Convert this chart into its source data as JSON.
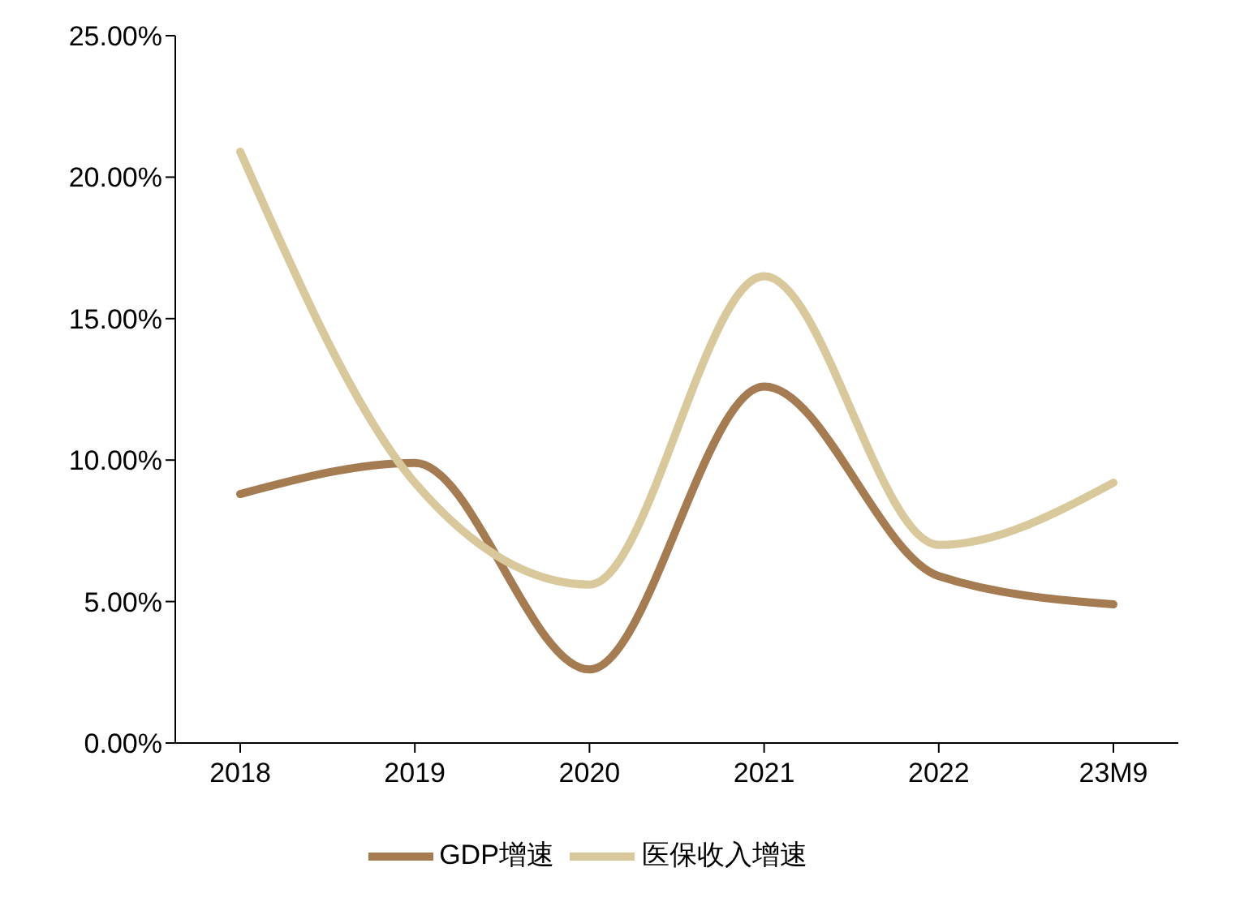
{
  "chart_data": {
    "type": "line",
    "categories": [
      "2018",
      "2019",
      "2020",
      "2021",
      "2022",
      "23M9"
    ],
    "series": [
      {
        "name": "GDP增速",
        "color": "#a57c52",
        "values": [
          8.8,
          9.9,
          2.6,
          12.6,
          5.9,
          4.9
        ]
      },
      {
        "name": "医保收入增速",
        "color": "#d9c89b",
        "values": [
          20.9,
          9.2,
          5.6,
          16.5,
          7.0,
          9.2
        ]
      }
    ],
    "ylim": [
      0,
      25
    ],
    "yticks": [
      {
        "value": 0,
        "label": "0.00%"
      },
      {
        "value": 5,
        "label": "5.00%"
      },
      {
        "value": 10,
        "label": "10.00%"
      },
      {
        "value": 15,
        "label": "15.00%"
      },
      {
        "value": 20,
        "label": "20.00%"
      },
      {
        "value": 25,
        "label": "25.00%"
      }
    ],
    "grid": false,
    "legend": "bottom",
    "marker": "none",
    "line_style": "solid"
  }
}
